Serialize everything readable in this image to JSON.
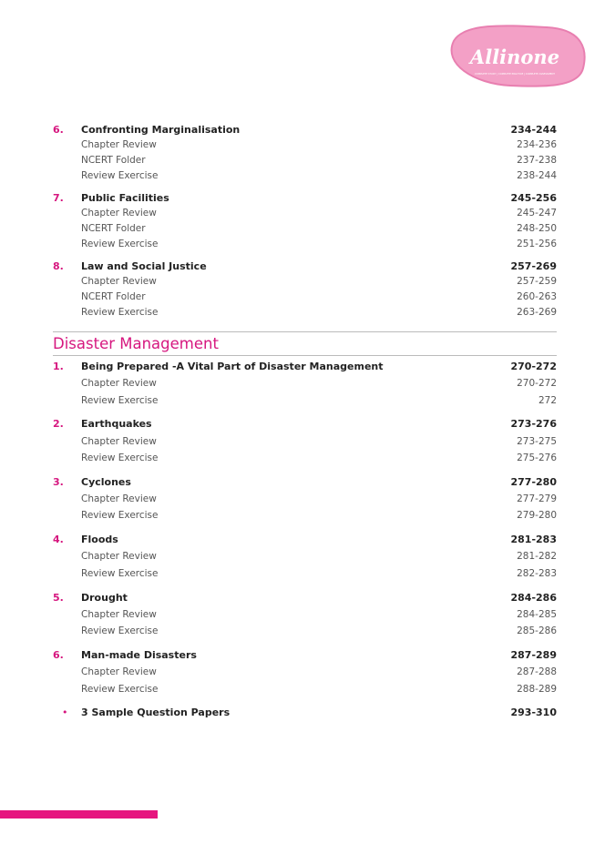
{
  "header": {
    "logo": "Allinone",
    "tagline": "COMPLETE STUDY | COMPLETE PRACTICE | COMPLETE ASSESSMENT"
  },
  "continued": {
    "chapters": [
      {
        "number": "6.",
        "title": "Confronting Marginalisation",
        "pages": "234-244",
        "parts": [
          {
            "title": "Chapter Review",
            "pages": "234-236"
          },
          {
            "title": "NCERT Folder",
            "pages": "237-238"
          },
          {
            "title": "Review Exercise",
            "pages": "238-244"
          }
        ]
      },
      {
        "number": "7.",
        "title": "Public Facilities",
        "pages": "245-256",
        "parts": [
          {
            "title": "Chapter Review",
            "pages": "245-247"
          },
          {
            "title": "NCERT Folder",
            "pages": "248-250"
          },
          {
            "title": "Review Exercise",
            "pages": "251-256"
          }
        ]
      },
      {
        "number": "8.",
        "title": "Law and Social Justice",
        "pages": "257-269",
        "parts": [
          {
            "title": "Chapter Review",
            "pages": "257-259"
          },
          {
            "title": "NCERT Folder",
            "pages": "260-263"
          },
          {
            "title": "Review Exercise",
            "pages": "263-269"
          }
        ]
      }
    ]
  },
  "disaster_management": {
    "title": "Disaster Management",
    "chapters": [
      {
        "number": "1.",
        "title": "Being Prepared -A Vital Part of Disaster Management",
        "pages": "270-272",
        "parts": [
          {
            "title": "Chapter Review",
            "pages": "270-272"
          },
          {
            "title": "Review Exercise",
            "pages": "272"
          }
        ]
      },
      {
        "number": "2.",
        "title": "Earthquakes",
        "pages": "273-276",
        "parts": [
          {
            "title": "Chapter Review",
            "pages": "273-275"
          },
          {
            "title": "Review Exercise",
            "pages": "275-276"
          }
        ]
      },
      {
        "number": "3.",
        "title": "Cyclones",
        "pages": "277-280",
        "parts": [
          {
            "title": "Chapter Review",
            "pages": "277-279"
          },
          {
            "title": "Review Exercise",
            "pages": "279-280"
          }
        ]
      },
      {
        "number": "4.",
        "title": "Floods",
        "pages": "281-283",
        "parts": [
          {
            "title": "Chapter Review",
            "pages": "281-282"
          },
          {
            "title": "Review Exercise",
            "pages": "282-283"
          }
        ]
      },
      {
        "number": "5.",
        "title": "Drought",
        "pages": "284-286",
        "parts": [
          {
            "title": "Chapter Review",
            "pages": "284-285"
          },
          {
            "title": "Review Exercise",
            "pages": "285-286"
          }
        ]
      },
      {
        "number": "6.",
        "title": "Man-made Disasters",
        "pages": "287-289",
        "parts": [
          {
            "title": "Chapter Review",
            "pages": "287-288"
          },
          {
            "title": "Review Exercise",
            "pages": "288-289"
          }
        ]
      }
    ]
  },
  "extra": {
    "title": "3 Sample Question Papers",
    "pages": "293-310"
  }
}
